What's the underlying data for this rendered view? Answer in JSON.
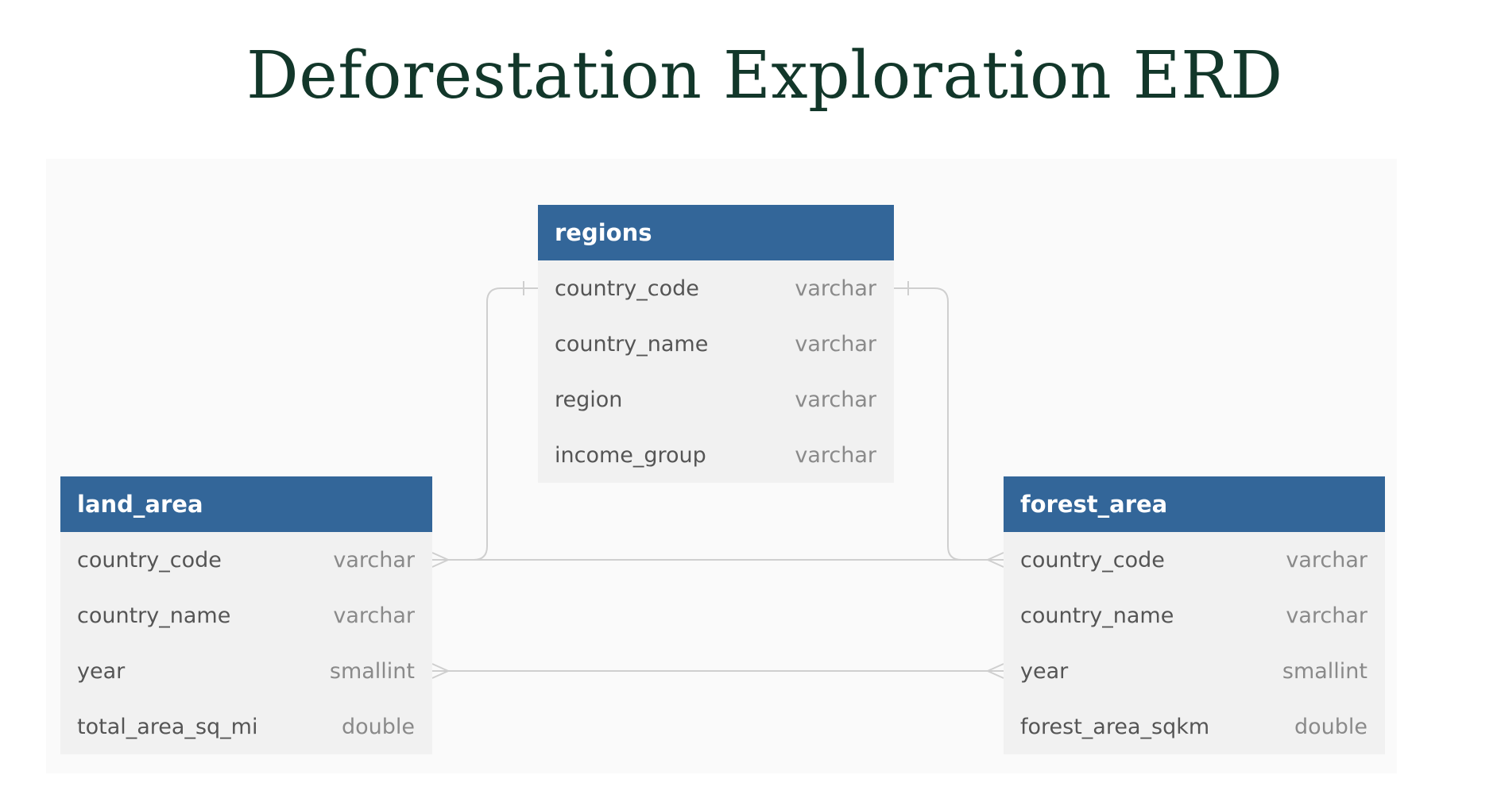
{
  "title": "Deforestation Exploration ERD",
  "tables": {
    "regions": {
      "name": "regions",
      "fields": [
        {
          "name": "country_code",
          "type": "varchar"
        },
        {
          "name": "country_name",
          "type": "varchar"
        },
        {
          "name": "region",
          "type": "varchar"
        },
        {
          "name": "income_group",
          "type": "varchar"
        }
      ]
    },
    "land_area": {
      "name": "land_area",
      "fields": [
        {
          "name": "country_code",
          "type": "varchar"
        },
        {
          "name": "country_name",
          "type": "varchar"
        },
        {
          "name": "year",
          "type": "smallint"
        },
        {
          "name": "total_area_sq_mi",
          "type": "double"
        }
      ]
    },
    "forest_area": {
      "name": "forest_area",
      "fields": [
        {
          "name": "country_code",
          "type": "varchar"
        },
        {
          "name": "country_name",
          "type": "varchar"
        },
        {
          "name": "year",
          "type": "smallint"
        },
        {
          "name": "forest_area_sqkm",
          "type": "double"
        }
      ]
    }
  },
  "relationships": [
    {
      "from": "regions.country_code",
      "to": "land_area.country_code",
      "cardinality": "one-to-many"
    },
    {
      "from": "regions.country_code",
      "to": "forest_area.country_code",
      "cardinality": "one-to-many"
    },
    {
      "from": "land_area.country_code",
      "to": "forest_area.country_code",
      "cardinality": "many-to-many"
    },
    {
      "from": "land_area.year",
      "to": "forest_area.year",
      "cardinality": "many-to-many"
    }
  ],
  "colors": {
    "header": "#336699",
    "title": "#12372a",
    "connector": "#cfcfcf"
  }
}
